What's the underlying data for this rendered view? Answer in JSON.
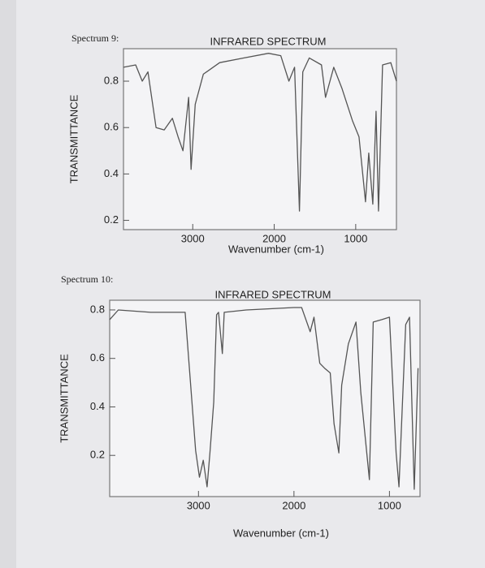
{
  "chart_data": [
    {
      "type": "line",
      "caption": "Spectrum 9:",
      "title": "INFRARED SPECTRUM",
      "xlabel": "Wavenumber (cm-1)",
      "ylabel": "TRANSMITTANCE",
      "x_reversed": true,
      "xlim": [
        3850,
        500
      ],
      "ylim": [
        0.16,
        0.94
      ],
      "xticks": [
        3000,
        2000,
        1000
      ],
      "yticks": [
        0.8,
        0.6,
        0.4,
        0.2
      ],
      "grid": false,
      "color": "#555555",
      "x": [
        3850,
        3700,
        3620,
        3550,
        3450,
        3350,
        3250,
        3180,
        3120,
        3050,
        3020,
        2970,
        2870,
        2670,
        2370,
        2070,
        1920,
        1820,
        1750,
        1690,
        1650,
        1570,
        1420,
        1370,
        1270,
        1170,
        1040,
        960,
        880,
        840,
        790,
        750,
        720,
        670,
        570,
        500
      ],
      "values": [
        0.86,
        0.87,
        0.8,
        0.84,
        0.6,
        0.59,
        0.64,
        0.56,
        0.5,
        0.73,
        0.42,
        0.7,
        0.83,
        0.88,
        0.9,
        0.92,
        0.91,
        0.8,
        0.86,
        0.24,
        0.84,
        0.9,
        0.87,
        0.73,
        0.86,
        0.77,
        0.63,
        0.56,
        0.28,
        0.49,
        0.27,
        0.67,
        0.24,
        0.87,
        0.88,
        0.8
      ]
    },
    {
      "type": "line",
      "caption": "Spectrum 10:",
      "title": "INFRARED SPECTRUM",
      "xlabel": "Wavenumber (cm-1)",
      "ylabel": "TRANSMITTANCE",
      "x_reversed": true,
      "xlim": [
        3930,
        680
      ],
      "ylim": [
        0.03,
        0.84
      ],
      "xticks": [
        3000,
        2000,
        1000
      ],
      "yticks": [
        0.8,
        0.6,
        0.4,
        0.2
      ],
      "grid": false,
      "color": "#555555",
      "x": [
        3930,
        3840,
        3500,
        3140,
        3030,
        2990,
        2950,
        2910,
        2880,
        2840,
        2810,
        2790,
        2750,
        2730,
        2500,
        2000,
        1920,
        1830,
        1790,
        1730,
        1680,
        1620,
        1580,
        1530,
        1500,
        1430,
        1350,
        1300,
        1210,
        1170,
        1080,
        1000,
        930,
        900,
        830,
        790,
        740,
        700
      ],
      "values": [
        0.76,
        0.8,
        0.79,
        0.79,
        0.22,
        0.11,
        0.18,
        0.07,
        0.21,
        0.42,
        0.78,
        0.79,
        0.62,
        0.79,
        0.8,
        0.81,
        0.81,
        0.71,
        0.77,
        0.58,
        0.56,
        0.54,
        0.33,
        0.21,
        0.49,
        0.66,
        0.75,
        0.46,
        0.1,
        0.75,
        0.76,
        0.77,
        0.21,
        0.07,
        0.74,
        0.77,
        0.06,
        0.56
      ]
    }
  ]
}
